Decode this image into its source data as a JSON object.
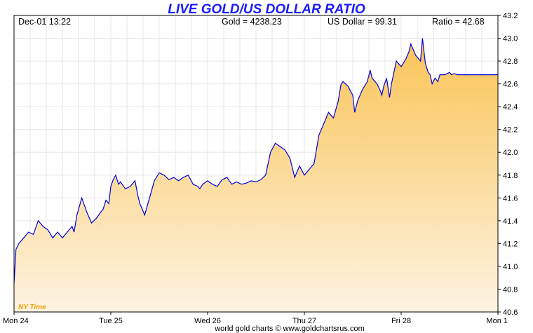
{
  "chart_data": {
    "type": "area",
    "title": "LIVE GOLD/US DOLLAR RATIO",
    "header": {
      "datetime": "Dec-01  13:22",
      "gold": "Gold = 4238.23",
      "usd": "US Dollar = 99.31",
      "ratio": "Ratio = 42.68"
    },
    "timezone_label": "NY Time",
    "footer": "world gold charts © www.goldchartsrus.com",
    "x_ticks": [
      "Mon 24",
      "Tue 25",
      "Wed 26",
      "Thu 27",
      "Fri 28",
      "Mon 1"
    ],
    "x_tick_pos": [
      0,
      1,
      2,
      3,
      4,
      5
    ],
    "xlim": [
      0,
      5
    ],
    "ylim": [
      40.6,
      43.2
    ],
    "y_ticks": [
      "43.2",
      "43.0",
      "42.8",
      "42.6",
      "42.4",
      "42.2",
      "42.0",
      "41.8",
      "41.6",
      "41.4",
      "41.2",
      "41.0",
      "40.8",
      "40.6"
    ],
    "grid": true,
    "line_color": "#0000dd",
    "fill_top_color": "#f9c456",
    "fill_bottom_color": "#fdf3e2",
    "series": [
      {
        "x": [
          0.0,
          0.02,
          0.05,
          0.1,
          0.15,
          0.2,
          0.25,
          0.3,
          0.35,
          0.4,
          0.45,
          0.5,
          0.55,
          0.6,
          0.62,
          0.65,
          0.7,
          0.75,
          0.8,
          0.85,
          0.9,
          0.92,
          0.95,
          0.98,
          1.0,
          1.02,
          1.05,
          1.08,
          1.1,
          1.15,
          1.2,
          1.25,
          1.28,
          1.3,
          1.35,
          1.4,
          1.45,
          1.5,
          1.55,
          1.6,
          1.65,
          1.7,
          1.75,
          1.8,
          1.85,
          1.9,
          1.92,
          1.95,
          2.0,
          2.05,
          2.1,
          2.15,
          2.2,
          2.25,
          2.3,
          2.35,
          2.4,
          2.45,
          2.5,
          2.55,
          2.6,
          2.65,
          2.7,
          2.75,
          2.8,
          2.85,
          2.9,
          2.95,
          3.0,
          3.05,
          3.1,
          3.15,
          3.2,
          3.25,
          3.3,
          3.35,
          3.38,
          3.4,
          3.45,
          3.5,
          3.52,
          3.55,
          3.6,
          3.65,
          3.68,
          3.7,
          3.75,
          3.78,
          3.8,
          3.82,
          3.85,
          3.88,
          3.9,
          3.95,
          4.0,
          4.05,
          4.08,
          4.1,
          4.15,
          4.2,
          4.22,
          4.25,
          4.28,
          4.3,
          4.32,
          4.35,
          4.38,
          4.4,
          4.45,
          4.5,
          4.52,
          4.55,
          4.58,
          4.6,
          4.62,
          4.65,
          4.68,
          4.7,
          4.72,
          4.75,
          4.78,
          4.8,
          4.83,
          4.85,
          4.88,
          4.9,
          4.92,
          4.95,
          4.97,
          5.0
        ],
        "values": [
          40.85,
          41.15,
          41.2,
          41.25,
          41.3,
          41.28,
          41.4,
          41.35,
          41.32,
          41.25,
          41.3,
          41.25,
          41.3,
          41.35,
          41.3,
          41.45,
          41.6,
          41.48,
          41.38,
          41.42,
          41.48,
          41.5,
          41.58,
          41.55,
          41.7,
          41.75,
          41.8,
          41.72,
          41.74,
          41.68,
          41.7,
          41.75,
          41.62,
          41.55,
          41.45,
          41.6,
          41.75,
          41.82,
          41.8,
          41.76,
          41.78,
          41.75,
          41.78,
          41.8,
          41.72,
          41.7,
          41.68,
          41.72,
          41.75,
          41.72,
          41.7,
          41.76,
          41.78,
          41.72,
          41.74,
          41.72,
          41.73,
          41.75,
          41.74,
          41.76,
          41.8,
          42.0,
          42.08,
          42.05,
          42.02,
          41.95,
          41.78,
          41.88,
          41.8,
          41.85,
          41.9,
          42.15,
          42.25,
          42.35,
          42.3,
          42.45,
          42.6,
          42.62,
          42.58,
          42.5,
          42.35,
          42.45,
          42.55,
          42.62,
          42.72,
          42.65,
          42.6,
          42.55,
          42.5,
          42.58,
          42.65,
          42.48,
          42.6,
          42.8,
          42.75,
          42.82,
          42.88,
          42.95,
          42.85,
          42.8,
          43.0,
          42.78,
          42.7,
          42.68,
          42.6,
          42.65,
          42.62,
          42.68,
          42.68,
          42.7,
          42.68,
          42.69,
          42.68,
          42.68,
          42.68,
          42.68,
          42.68,
          42.68,
          42.68,
          42.68,
          42.68,
          42.68,
          42.68,
          42.68,
          42.68,
          42.68,
          42.68,
          42.68,
          42.68,
          42.68
        ]
      }
    ]
  }
}
